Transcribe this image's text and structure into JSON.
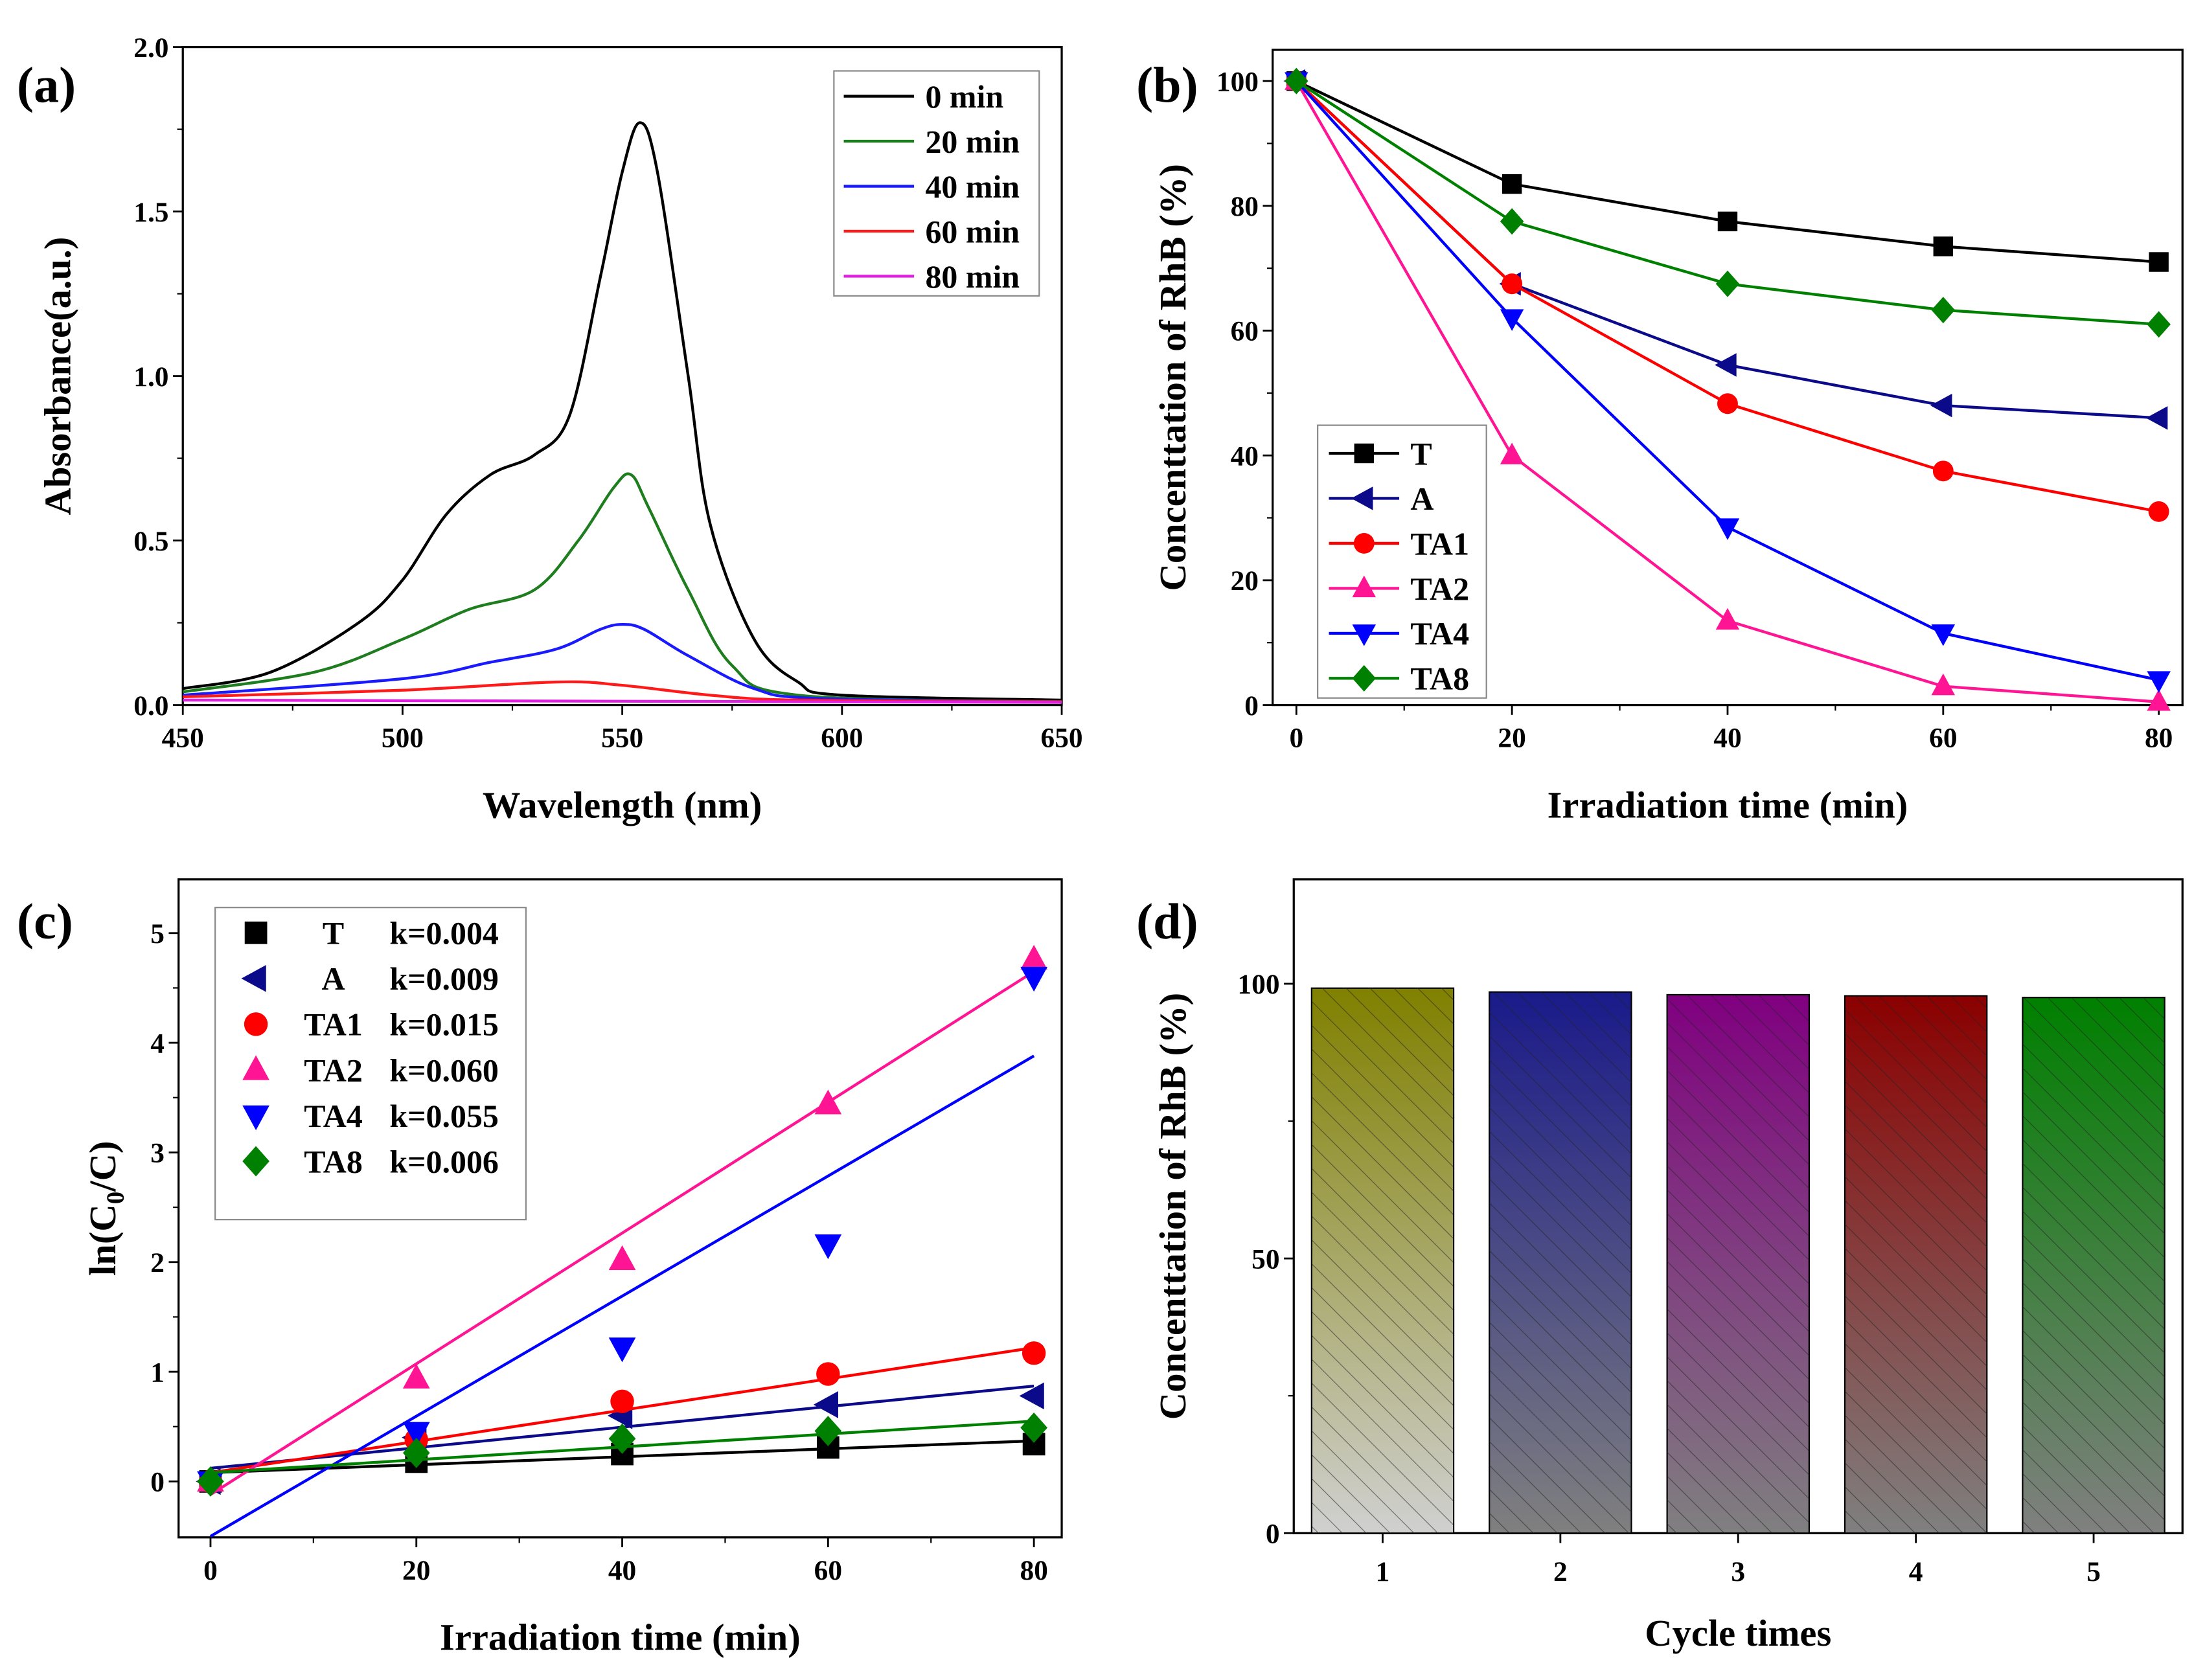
{
  "chart_data": [
    {
      "panel_label": "(a)",
      "type": "line",
      "xlabel": "Wavelength (nm)",
      "ylabel": "Absorbance(a.u.)",
      "xlim": [
        450,
        650
      ],
      "ylim": [
        0,
        2.0
      ],
      "xticks": [
        450,
        500,
        550,
        600,
        650
      ],
      "yticks": [
        "0.0",
        "0.5",
        "1.0",
        "1.5",
        "2.0"
      ],
      "legend_position": "top-right",
      "series": [
        {
          "name": "0 min",
          "color": "#000000",
          "points": [
            [
              450,
              0.05
            ],
            [
              470,
              0.1
            ],
            [
              490,
              0.25
            ],
            [
              500,
              0.38
            ],
            [
              510,
              0.58
            ],
            [
              520,
              0.7
            ],
            [
              530,
              0.76
            ],
            [
              538,
              0.88
            ],
            [
              545,
              1.3
            ],
            [
              550,
              1.62
            ],
            [
              554,
              1.77
            ],
            [
              558,
              1.62
            ],
            [
              565,
              1.0
            ],
            [
              570,
              0.55
            ],
            [
              580,
              0.2
            ],
            [
              590,
              0.07
            ],
            [
              600,
              0.03
            ],
            [
              650,
              0.015
            ]
          ]
        },
        {
          "name": "20 min",
          "color": "#1e7d1e",
          "points": [
            [
              450,
              0.04
            ],
            [
              480,
              0.1
            ],
            [
              500,
              0.2
            ],
            [
              515,
              0.29
            ],
            [
              530,
              0.35
            ],
            [
              540,
              0.5
            ],
            [
              548,
              0.66
            ],
            [
              552,
              0.7
            ],
            [
              556,
              0.6
            ],
            [
              565,
              0.35
            ],
            [
              575,
              0.12
            ],
            [
              590,
              0.03
            ],
            [
              650,
              0.01
            ]
          ]
        },
        {
          "name": "40 min",
          "color": "#1a1aff",
          "points": [
            [
              450,
              0.03
            ],
            [
              500,
              0.08
            ],
            [
              520,
              0.13
            ],
            [
              535,
              0.17
            ],
            [
              545,
              0.23
            ],
            [
              550,
              0.245
            ],
            [
              555,
              0.23
            ],
            [
              565,
              0.15
            ],
            [
              580,
              0.05
            ],
            [
              595,
              0.02
            ],
            [
              650,
              0.01
            ]
          ]
        },
        {
          "name": "60 min",
          "color": "#ff1a1a",
          "points": [
            [
              450,
              0.025
            ],
            [
              500,
              0.045
            ],
            [
              535,
              0.07
            ],
            [
              550,
              0.06
            ],
            [
              570,
              0.03
            ],
            [
              590,
              0.015
            ],
            [
              650,
              0.01
            ]
          ]
        },
        {
          "name": "80 min",
          "color": "#e020e0",
          "points": [
            [
              450,
              0.015
            ],
            [
              650,
              0.008
            ]
          ]
        }
      ]
    },
    {
      "panel_label": "(b)",
      "type": "line",
      "xlabel": "Irradiation time (min)",
      "ylabel": "Concenttation of RhB (%)",
      "xlim": [
        -2.2,
        82.2
      ],
      "ylim": [
        0,
        105
      ],
      "xticks": [
        0,
        20,
        40,
        60,
        80
      ],
      "yticks": [
        0,
        20,
        40,
        60,
        80,
        100
      ],
      "legend_position": "bottom-left",
      "x": [
        0,
        20,
        40,
        60,
        80
      ],
      "series": [
        {
          "name": "T",
          "color": "#000000",
          "marker": "square",
          "values": [
            100,
            83.5,
            77.5,
            73.5,
            71
          ]
        },
        {
          "name": "A",
          "color": "#0a0a8a",
          "marker": "triangle-left",
          "values": [
            100,
            67.5,
            54.5,
            48,
            46
          ]
        },
        {
          "name": "TA1",
          "color": "#ff0000",
          "marker": "circle",
          "values": [
            100,
            67.5,
            48.3,
            37.5,
            31
          ]
        },
        {
          "name": "TA2",
          "color": "#ff1493",
          "marker": "triangle-up",
          "values": [
            100,
            40,
            13.5,
            3,
            0.5
          ]
        },
        {
          "name": "TA4",
          "color": "#0000ff",
          "marker": "triangle-down",
          "values": [
            100,
            62,
            28.5,
            11.5,
            4
          ]
        },
        {
          "name": "TA8",
          "color": "#008000",
          "marker": "diamond",
          "values": [
            100,
            77.5,
            67.5,
            63.3,
            61
          ]
        }
      ]
    },
    {
      "panel_label": "(c)",
      "type": "scatter",
      "xlabel": "Irradiation time (min)",
      "ylabel": "ln(C0/C)",
      "ylabel_main": "ln(C",
      "ylabel_sub": "0",
      "ylabel_end": "/C)",
      "xlim": [
        -3.1,
        82.7
      ],
      "ylim": [
        -0.51,
        5.49
      ],
      "xticks": [
        0,
        20,
        40,
        60,
        80
      ],
      "yticks": [
        0,
        1,
        2,
        3,
        4,
        5
      ],
      "legend_position": "top-left",
      "x": [
        0,
        20,
        40,
        60,
        80
      ],
      "series": [
        {
          "name": "T",
          "k": "k=0.004",
          "color": "#000000",
          "marker": "square",
          "values": [
            0,
            0.18,
            0.25,
            0.31,
            0.34
          ],
          "fit": [
            0.08,
            0.37
          ]
        },
        {
          "name": "A",
          "k": "k=0.009",
          "color": "#0a0a8a",
          "marker": "triangle-left",
          "values": [
            0,
            0.4,
            0.6,
            0.7,
            0.78
          ],
          "fit": [
            0.12,
            0.87
          ]
        },
        {
          "name": "TA1",
          "k": "k=0.015",
          "color": "#ff0000",
          "marker": "circle",
          "values": [
            0,
            0.38,
            0.73,
            0.98,
            1.17
          ],
          "fit": [
            0.08,
            1.22
          ]
        },
        {
          "name": "TA2",
          "k": "k=0.060",
          "color": "#ff1493",
          "marker": "triangle-up",
          "values": [
            0,
            0.94,
            2.02,
            3.44,
            4.76
          ],
          "fit": [
            -0.12,
            4.65
          ]
        },
        {
          "name": "TA4",
          "k": "k=0.055",
          "color": "#0000ff",
          "marker": "triangle-down",
          "values": [
            0,
            0.45,
            1.22,
            2.16,
            4.6
          ],
          "fit": [
            -0.5,
            3.88
          ]
        },
        {
          "name": "TA8",
          "k": "k=0.006",
          "color": "#008000",
          "marker": "diamond",
          "values": [
            0,
            0.26,
            0.39,
            0.46,
            0.49
          ],
          "fit": [
            0.08,
            0.55
          ]
        }
      ]
    },
    {
      "panel_label": "(d)",
      "type": "bar",
      "xlabel": "Cycle times",
      "ylabel": "Concenttation of RhB (%)",
      "categories": [
        "1",
        "2",
        "3",
        "4",
        "5"
      ],
      "values": [
        99.2,
        98.5,
        98.0,
        97.8,
        97.5
      ],
      "colors": [
        "#808000",
        "#1a1a8a",
        "#800080",
        "#8b0000",
        "#008000"
      ],
      "ylim": [
        0,
        119
      ],
      "yticks": [
        0,
        50,
        100
      ]
    }
  ]
}
